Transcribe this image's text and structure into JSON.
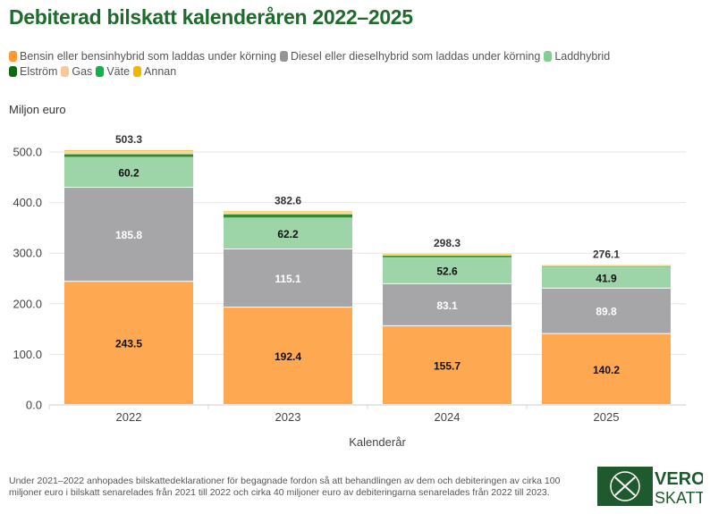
{
  "title": "Debiterad bilskatt kalenderåren 2022–2025",
  "chart_data": {
    "type": "bar",
    "stacked": true,
    "title": "Debiterad bilskatt kalenderåren 2022–2025",
    "ylabel": "Miljon euro",
    "xlabel": "Kalenderår",
    "categories": [
      "2022",
      "2023",
      "2024",
      "2025"
    ],
    "ylim": [
      0,
      500
    ],
    "yticks": [
      "0.0",
      "100.0",
      "200.0",
      "300.0",
      "400.0",
      "500.0"
    ],
    "grid": true,
    "legend_position": "top",
    "series": [
      {
        "name": "Bensin eller bensinhybrid som laddas under körning",
        "color": "#ffa852",
        "values": [
          243.5,
          192.4,
          155.7,
          140.2
        ],
        "labels": [
          "243.5",
          "192.4",
          "155.7",
          "140.2"
        ]
      },
      {
        "name": "Diesel eller dieselhybrid som laddas under körning",
        "color": "#a6a6a8",
        "values": [
          185.8,
          115.1,
          83.1,
          89.8
        ],
        "labels": [
          "185.8",
          "115.1",
          "83.1",
          "89.8"
        ]
      },
      {
        "name": "Laddhybrid",
        "color": "#9dd4a8",
        "values": [
          60.2,
          62.2,
          52.6,
          41.9
        ],
        "labels": [
          "60.2",
          "62.2",
          "52.6",
          "41.9"
        ]
      },
      {
        "name": "Elström",
        "color": "#2e8b34",
        "values": [
          6.0,
          7.0,
          3.6,
          1.5
        ],
        "labels": [
          "",
          "",
          "",
          ""
        ]
      },
      {
        "name": "Gas",
        "color": "#f7d7a8",
        "values": [
          7.5,
          5.6,
          3.1,
          2.5
        ],
        "labels": [
          "",
          "",
          "",
          ""
        ]
      },
      {
        "name": "Väte",
        "color": "#1db449",
        "values": [
          0,
          0,
          0,
          0
        ],
        "labels": [
          "",
          "",
          "",
          ""
        ]
      },
      {
        "name": "Annan",
        "color": "#f5b800",
        "values": [
          0.3,
          0.3,
          0.2,
          0.2
        ],
        "labels": [
          "",
          "",
          "",
          ""
        ]
      }
    ],
    "totals": [
      "503.3",
      "382.6",
      "298.3",
      "276.1"
    ]
  },
  "legend_colors": [
    "#ff9a33",
    "#959595",
    "#84cc95",
    "#0e6a12",
    "#f7c99a",
    "#10b04a",
    "#f2b600"
  ],
  "footnote": "Under 2021–2022 anhopades bilskattedeklarationer för begagnade fordon så att behandlingen av dem och debiteringen av cirka 100 miljoner euro i bilskatt senarelades från 2021 till 2022 och cirka 40 miljoner euro av debiteringarna senarelades från 2022 till 2023.",
  "logo": {
    "line1": "VERO",
    "line2": "SKATT",
    "color": "#1e5a2e"
  }
}
